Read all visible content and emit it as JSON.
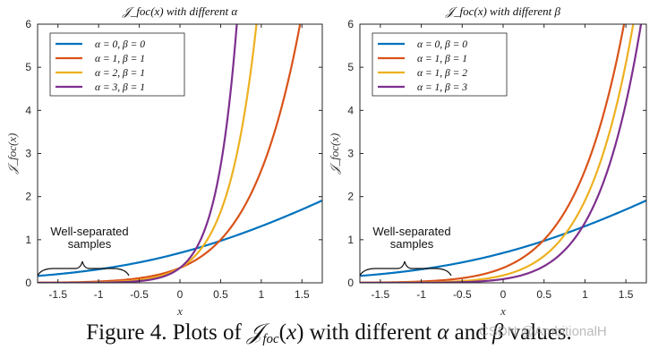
{
  "chart_data": [
    {
      "type": "line",
      "title": "𝒥_foc(x) with different α",
      "xlabel": "x",
      "ylabel": "𝒥_foc(x)",
      "xlim": [
        -1.75,
        1.75
      ],
      "ylim": [
        0,
        6
      ],
      "xticks": [
        -1.5,
        -1,
        -0.5,
        0,
        0.5,
        1,
        1.5
      ],
      "xtick_labels": [
        "-1.5",
        "-1",
        "-0.5",
        "0",
        "0.5",
        "1",
        "1.5"
      ],
      "yticks": [
        0,
        1,
        2,
        3,
        4,
        5,
        6
      ],
      "ytick_labels": [
        "0",
        "1",
        "2",
        "3",
        "4",
        "5",
        "6"
      ],
      "legend_position": "top-left",
      "series": [
        {
          "name": "α = 0, β = 0",
          "alpha": 0,
          "beta": 0,
          "color": "#0072BD"
        },
        {
          "name": "α = 1, β = 1",
          "alpha": 1,
          "beta": 1,
          "color": "#D95319"
        },
        {
          "name": "α = 2, β = 1",
          "alpha": 2,
          "beta": 1,
          "color": "#EDB120"
        },
        {
          "name": "α = 3, β = 1",
          "alpha": 3,
          "beta": 1,
          "color": "#7E2F8E"
        }
      ],
      "annotation": {
        "line1": "Well-separated",
        "line2": "samples"
      }
    },
    {
      "type": "line",
      "title": "𝒥_foc(x) with different β",
      "xlabel": "x",
      "ylabel": "𝒥_foc(x)",
      "xlim": [
        -1.75,
        1.75
      ],
      "ylim": [
        0,
        6
      ],
      "xticks": [
        -1.5,
        -1,
        -0.5,
        0,
        0.5,
        1,
        1.5
      ],
      "xtick_labels": [
        "-1.5",
        "-1",
        "-0.5",
        "0",
        "0.5",
        "1",
        "1.5"
      ],
      "yticks": [
        0,
        1,
        2,
        3,
        4,
        5,
        6
      ],
      "ytick_labels": [
        "0",
        "1",
        "2",
        "3",
        "4",
        "5",
        "6"
      ],
      "legend_position": "top-left",
      "series": [
        {
          "name": "α = 0, β = 0",
          "alpha": 0,
          "beta": 0,
          "color": "#0072BD"
        },
        {
          "name": "α = 1, β = 1",
          "alpha": 1,
          "beta": 1,
          "color": "#D95319"
        },
        {
          "name": "α = 1, β = 2",
          "alpha": 1,
          "beta": 2,
          "color": "#EDB120"
        },
        {
          "name": "α = 1, β = 3",
          "alpha": 1,
          "beta": 3,
          "color": "#7E2F8E"
        }
      ],
      "annotation": {
        "line1": "Well-separated",
        "line2": "samples"
      }
    }
  ],
  "caption": {
    "prefix": "Figure 4. Plots of ",
    "math": "𝒥",
    "mid": " with different ",
    "alpha": "α",
    "and": " and ",
    "beta": "β",
    "suffix": " values."
  },
  "watermark": "CSDN @AmbitionalH"
}
